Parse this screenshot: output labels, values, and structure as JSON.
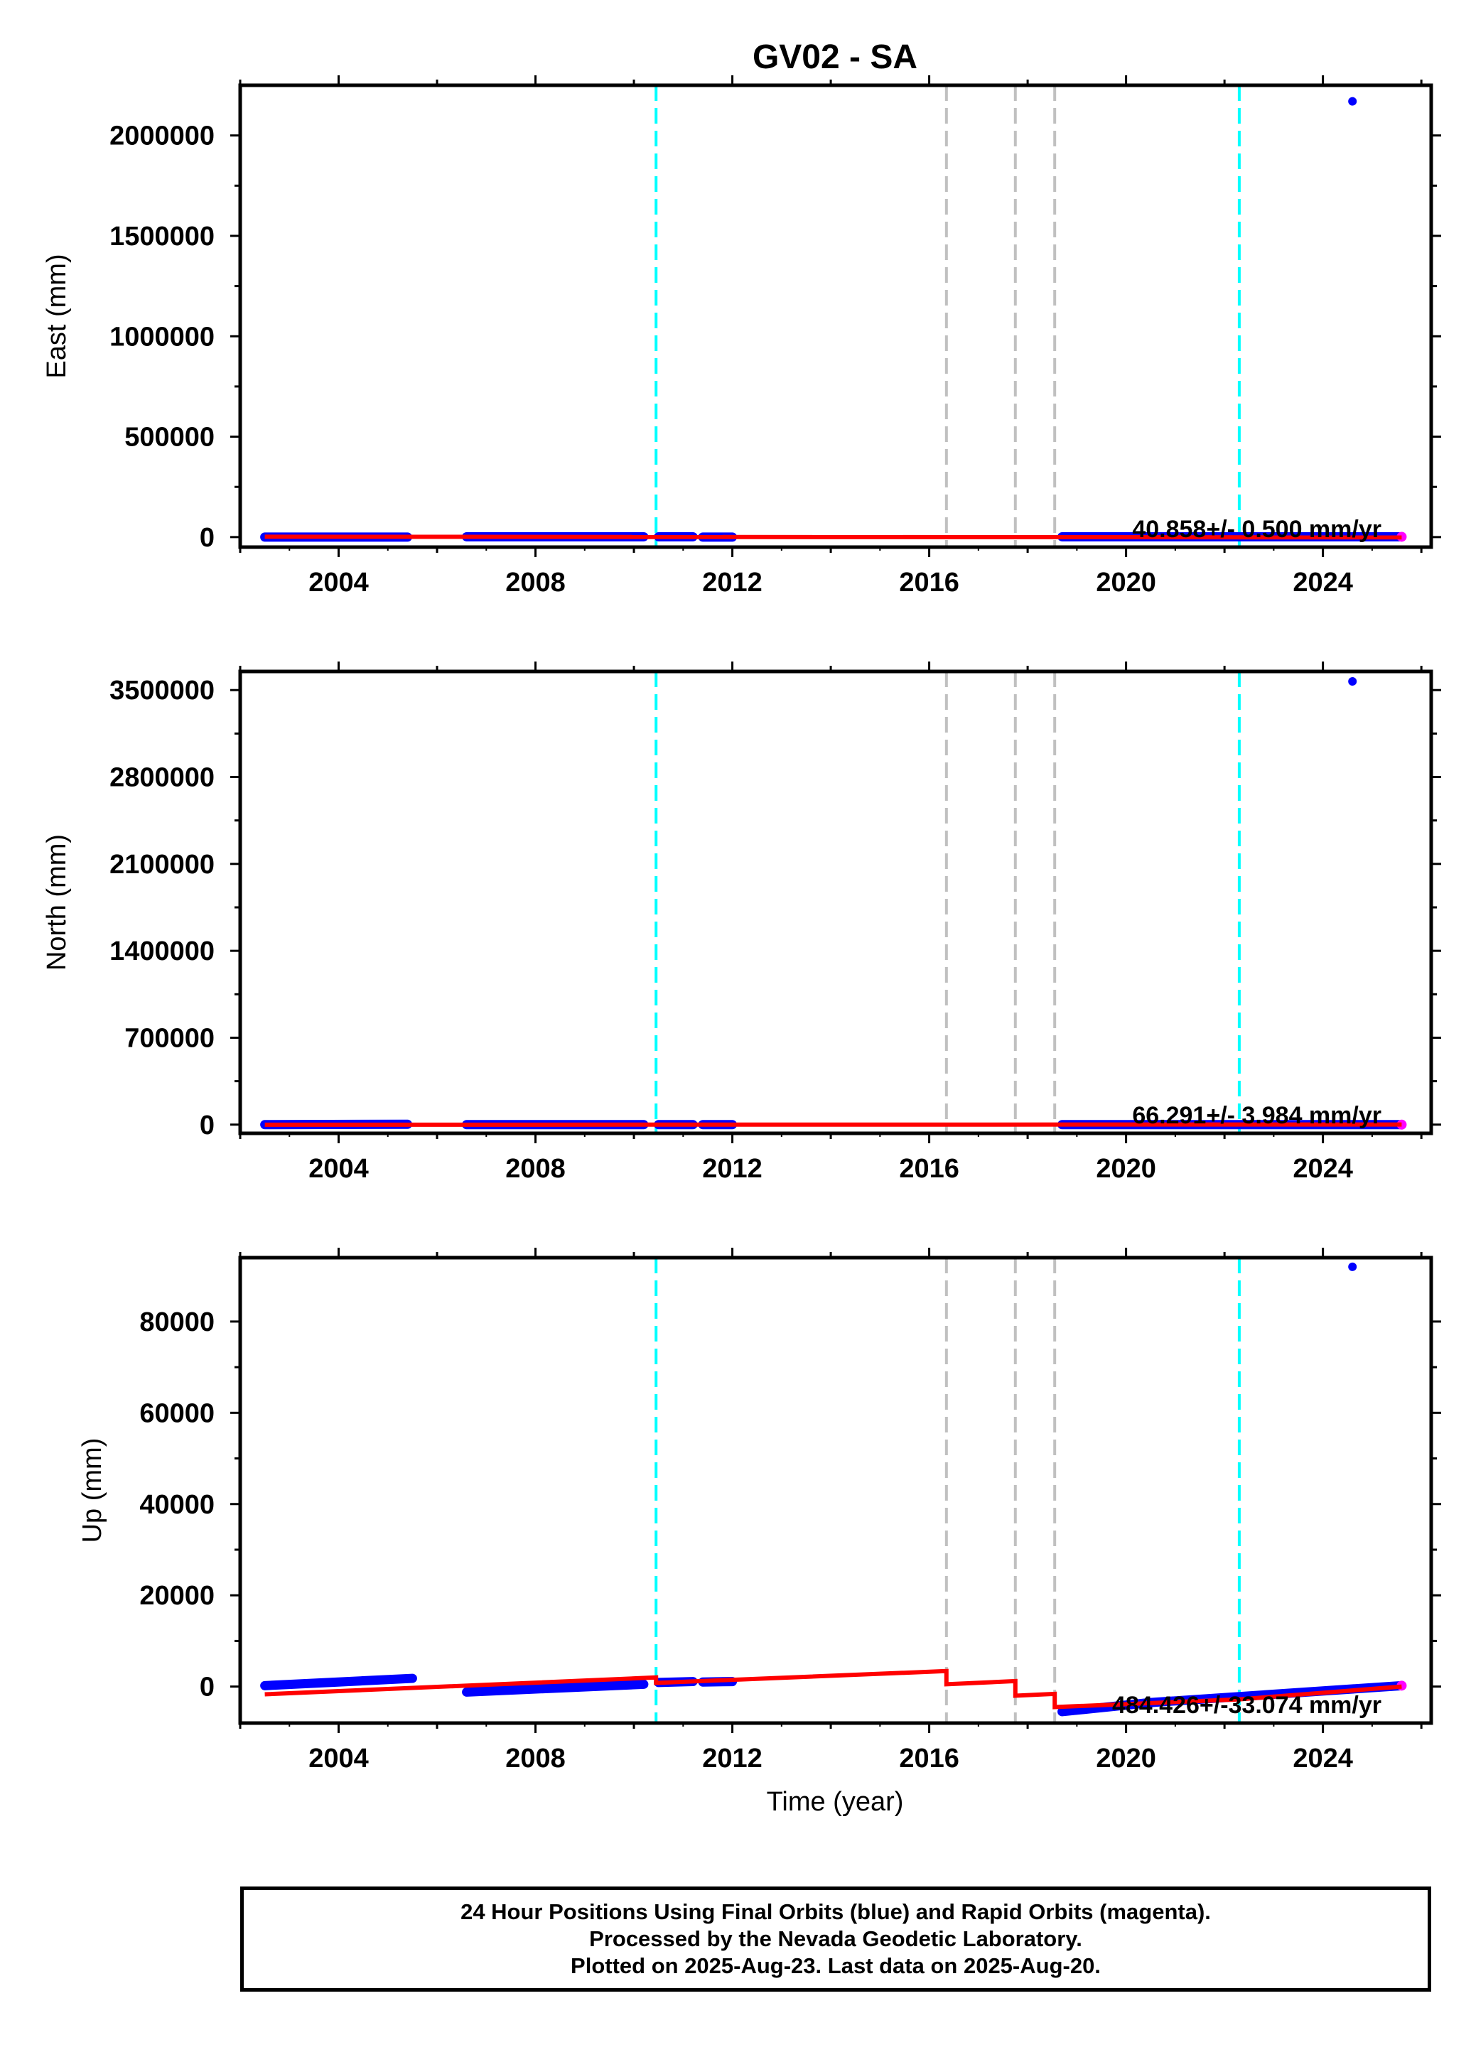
{
  "chart_data": {
    "title": "GV02 - SA",
    "type": "scatter",
    "xlabel": "Time (year)",
    "x_range": [
      2002.0,
      2026.2
    ],
    "x_ticks": [
      2004,
      2008,
      2012,
      2016,
      2020,
      2024
    ],
    "x_minor_ticks": [
      2002,
      2006,
      2010,
      2014,
      2018,
      2022,
      2026
    ],
    "colors": {
      "final_orbits": "#0000ff",
      "rapid_orbits": "#ff00ff",
      "model": "#ff0000",
      "equipment_change": "#00ffff",
      "earthquake": "#c0c0c0"
    },
    "vertical_lines": [
      {
        "x": 2010.45,
        "color": "#00ffff"
      },
      {
        "x": 2016.35,
        "color": "#c0c0c0"
      },
      {
        "x": 2017.75,
        "color": "#c0c0c0"
      },
      {
        "x": 2018.55,
        "color": "#c0c0c0"
      },
      {
        "x": 2022.3,
        "color": "#00ffff"
      }
    ],
    "panels": [
      {
        "ylabel": "East (mm)",
        "ylim": [
          -50000,
          2250000
        ],
        "y_ticks": [
          0,
          500000,
          1000000,
          1500000,
          2000000
        ],
        "y_tick_labels": [
          "0",
          "500000",
          "1000000",
          "1500000",
          "2000000"
        ],
        "rate_text": "40.858+/- 0.500 mm/yr",
        "segments": [
          {
            "x0": 2002.5,
            "x1": 2005.4,
            "y0": 0,
            "y1": 0
          },
          {
            "x0": 2006.6,
            "x1": 2010.2,
            "y0": 1500,
            "y1": 1500
          },
          {
            "x0": 2010.5,
            "x1": 2011.2,
            "y0": 1500,
            "y1": 1500
          },
          {
            "x0": 2011.4,
            "x1": 2012.0,
            "y0": 0,
            "y1": 0
          },
          {
            "x0": 2018.7,
            "x1": 2025.6,
            "y0": 1500,
            "y1": 1500
          }
        ],
        "model": [
          [
            2002.5,
            1500
          ],
          [
            2025.6,
            -1500
          ]
        ],
        "outlier": [
          2024.6,
          2170000
        ]
      },
      {
        "ylabel": "North (mm)",
        "ylim": [
          -70000,
          3650000
        ],
        "y_ticks": [
          0,
          700000,
          1400000,
          2100000,
          2800000,
          3500000
        ],
        "y_tick_labels": [
          "0",
          "700000",
          "1400000",
          "2100000",
          "2800000",
          "3500000"
        ],
        "rate_text": "66.291+/- 3.984 mm/yr",
        "segments": [
          {
            "x0": 2002.5,
            "x1": 2005.4,
            "y0": 0,
            "y1": 3000
          },
          {
            "x0": 2006.6,
            "x1": 2010.2,
            "y0": 0,
            "y1": 0
          },
          {
            "x0": 2010.5,
            "x1": 2011.2,
            "y0": 0,
            "y1": 0
          },
          {
            "x0": 2011.4,
            "x1": 2012.0,
            "y0": 0,
            "y1": 0
          },
          {
            "x0": 2018.7,
            "x1": 2025.6,
            "y0": 0,
            "y1": 0
          }
        ],
        "model": [
          [
            2002.5,
            -1000
          ],
          [
            2025.6,
            1000
          ]
        ],
        "outlier": [
          2024.6,
          3570000
        ]
      },
      {
        "ylabel": "Up (mm)",
        "ylim": [
          -8000,
          94000
        ],
        "y_ticks": [
          0,
          20000,
          40000,
          60000,
          80000
        ],
        "y_tick_labels": [
          "0",
          "20000",
          "40000",
          "60000",
          "80000"
        ],
        "rate_text": "484.426+/-33.074 mm/yr",
        "segments": [
          {
            "x0": 2002.5,
            "x1": 2005.5,
            "y0": 200,
            "y1": 1800
          },
          {
            "x0": 2006.6,
            "x1": 2010.2,
            "y0": -1200,
            "y1": 500
          },
          {
            "x0": 2010.5,
            "x1": 2011.2,
            "y0": 900,
            "y1": 1100
          },
          {
            "x0": 2011.4,
            "x1": 2012.0,
            "y0": 1000,
            "y1": 1100
          },
          {
            "x0": 2018.7,
            "x1": 2020.5,
            "y0": -5500,
            "y1": -3500
          },
          {
            "x0": 2020.5,
            "x1": 2025.6,
            "y0": -3500,
            "y1": 200
          }
        ],
        "model": [
          [
            2002.5,
            -1700
          ],
          [
            2010.45,
            2000
          ],
          [
            2010.45,
            800
          ],
          [
            2016.35,
            3400
          ],
          [
            2016.35,
            500
          ],
          [
            2017.75,
            1200
          ],
          [
            2017.75,
            -2000
          ],
          [
            2018.55,
            -1600
          ],
          [
            2018.55,
            -4500
          ],
          [
            2022.3,
            -2800
          ],
          [
            2025.6,
            0
          ]
        ],
        "outlier": [
          2024.6,
          92000
        ]
      }
    ]
  },
  "footer": {
    "line1": "24 Hour Positions Using Final Orbits (blue) and Rapid Orbits (magenta).",
    "line2": "Processed by the Nevada Geodetic Laboratory.",
    "line3": "Plotted on 2025-Aug-23. Last data on 2025-Aug-20."
  }
}
